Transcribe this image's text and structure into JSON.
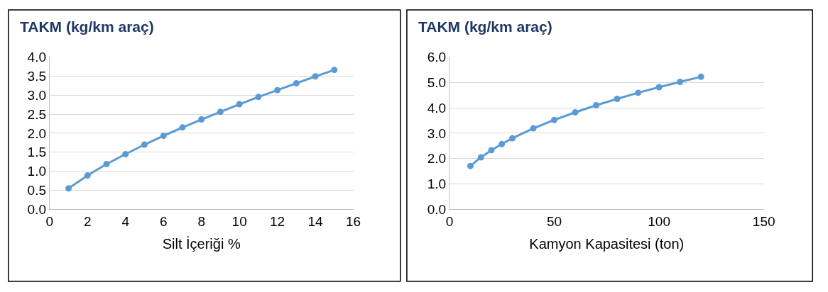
{
  "chart_data": [
    {
      "type": "line",
      "title": "TAKM (kg/km araç)",
      "xlabel": "Silt İçeriği %",
      "x": [
        1,
        2,
        3,
        4,
        5,
        6,
        7,
        8,
        9,
        10,
        11,
        12,
        13,
        14,
        15
      ],
      "series": [
        {
          "color": "#5b9bd5",
          "values": [
            0.55,
            0.89,
            1.19,
            1.45,
            1.7,
            1.93,
            2.15,
            2.36,
            2.56,
            2.76,
            2.95,
            3.13,
            3.31,
            3.49,
            3.66
          ]
        }
      ],
      "xlim": [
        0,
        16
      ],
      "xticks": [
        0,
        2,
        4,
        6,
        8,
        10,
        12,
        14,
        16
      ],
      "ylim": [
        0,
        4
      ],
      "yticks": [
        {
          "value": 0,
          "label": "0.0"
        },
        {
          "value": 0.5,
          "label": "0.5"
        },
        {
          "value": 1,
          "label": "1.0"
        },
        {
          "value": 1.5,
          "label": "1.5"
        },
        {
          "value": 2,
          "label": "2.0"
        },
        {
          "value": 2.5,
          "label": "2.5"
        },
        {
          "value": 3,
          "label": "3.0"
        },
        {
          "value": 3.5,
          "label": "3.5"
        },
        {
          "value": 4,
          "label": "4.0"
        }
      ],
      "grid": "y",
      "marker": "circle",
      "line_style": "solid"
    },
    {
      "type": "line",
      "title": "TAKM (kg/km araç)",
      "xlabel": "Kamyon Kapasitesi (ton)",
      "x": [
        10,
        15,
        20,
        25,
        30,
        40,
        50,
        60,
        70,
        80,
        90,
        100,
        110,
        120
      ],
      "series": [
        {
          "color": "#5b9bd5",
          "values": [
            1.71,
            2.05,
            2.33,
            2.57,
            2.8,
            3.19,
            3.52,
            3.82,
            4.1,
            4.35,
            4.59,
            4.81,
            5.02,
            5.22
          ]
        }
      ],
      "xlim": [
        0,
        150
      ],
      "xticks": [
        0,
        50,
        100,
        150
      ],
      "ylim": [
        0,
        6
      ],
      "yticks": [
        {
          "value": 0,
          "label": "0.0"
        },
        {
          "value": 1,
          "label": "1.0"
        },
        {
          "value": 2,
          "label": "2.0"
        },
        {
          "value": 3,
          "label": "3.0"
        },
        {
          "value": 4,
          "label": "4.0"
        },
        {
          "value": 5,
          "label": "5.0"
        },
        {
          "value": 6,
          "label": "6.0"
        }
      ],
      "grid": "y",
      "marker": "circle",
      "line_style": "solid"
    }
  ]
}
